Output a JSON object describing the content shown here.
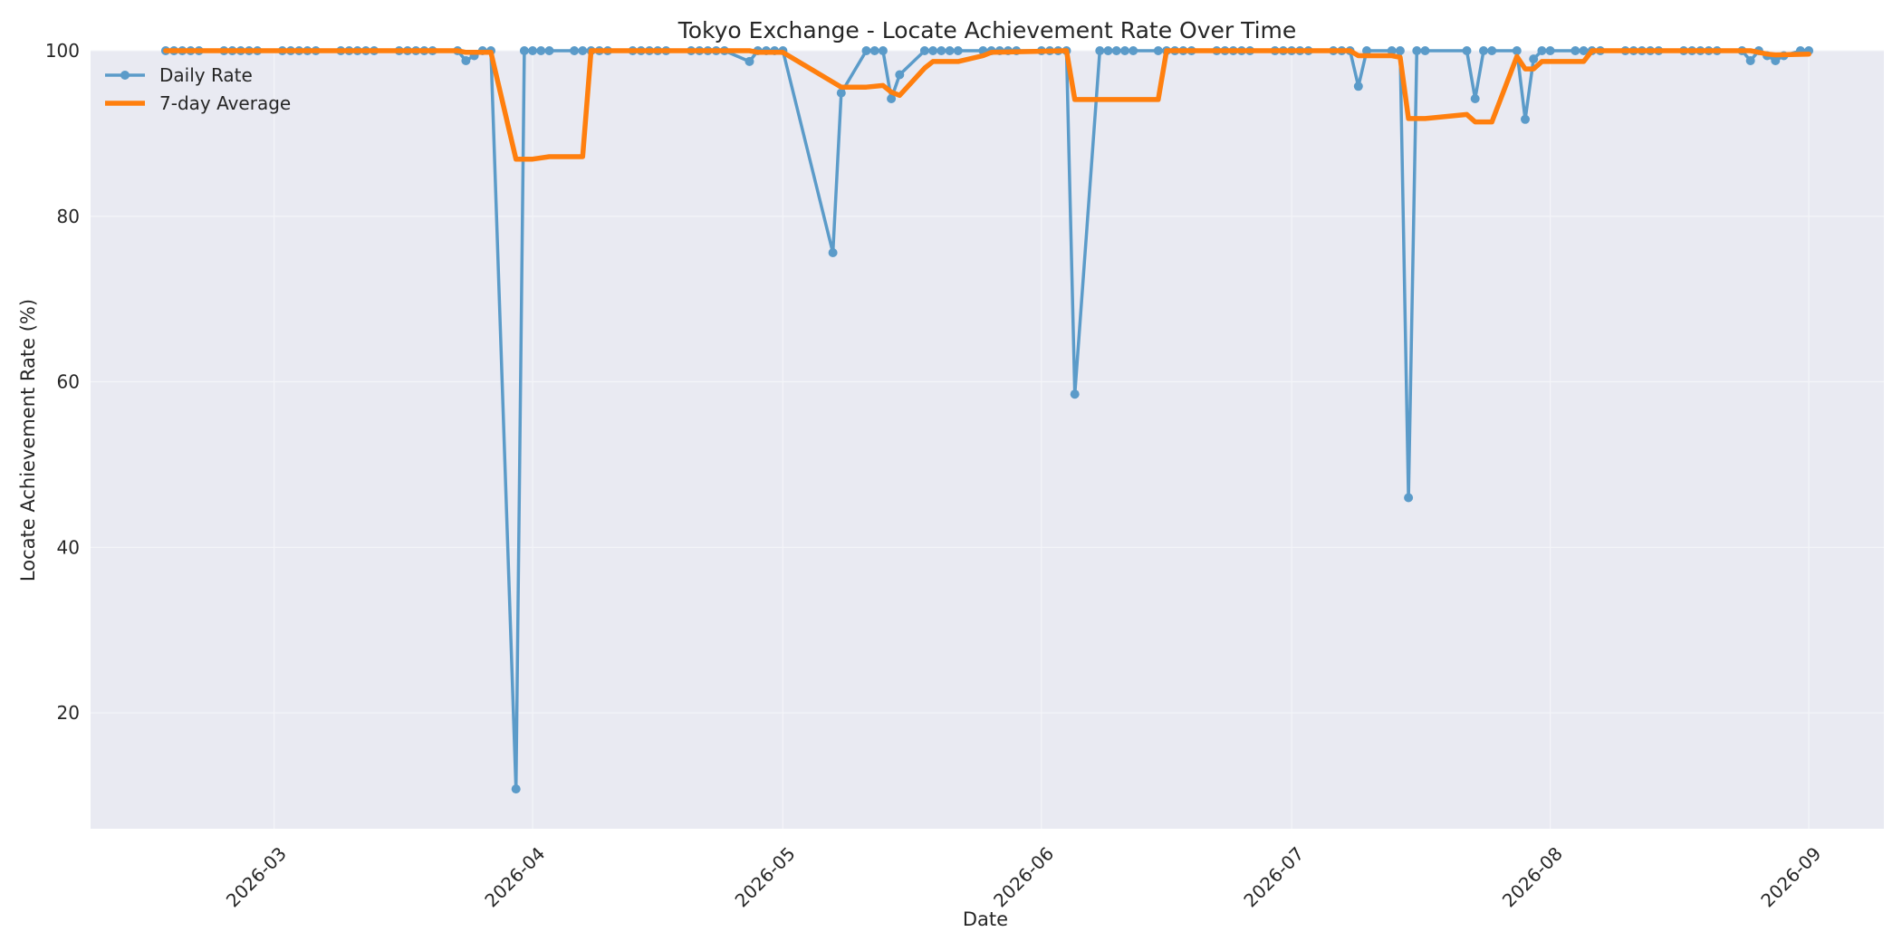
{
  "chart_data": {
    "type": "line",
    "title": "Tokyo Exchange - Locate Achievement Rate Over Time",
    "xlabel": "Date",
    "ylabel": "Locate Achievement Rate (%)",
    "xlim": [
      "2026-02-07",
      "2026-09-10"
    ],
    "ylim": [
      6,
      100
    ],
    "x_ticks": [
      "2026-03",
      "2026-04",
      "2026-05",
      "2026-06",
      "2026-07",
      "2026-08",
      "2026-09"
    ],
    "y_ticks": [
      20,
      40,
      60,
      80,
      100
    ],
    "grid": true,
    "legend_position": "upper left",
    "background_color": "#e9eaf2",
    "grid_color": "#f4f5f9",
    "series": [
      {
        "name": "Daily Rate",
        "color": "#5b9bc9",
        "marker": "circle",
        "points": [
          [
            "2026-02-16",
            100
          ],
          [
            "2026-02-17",
            100
          ],
          [
            "2026-02-18",
            100
          ],
          [
            "2026-02-19",
            100
          ],
          [
            "2026-02-20",
            100
          ],
          [
            "2026-02-23",
            100
          ],
          [
            "2026-02-24",
            100
          ],
          [
            "2026-02-25",
            100
          ],
          [
            "2026-02-26",
            100
          ],
          [
            "2026-02-27",
            100
          ],
          [
            "2026-03-02",
            100
          ],
          [
            "2026-03-03",
            100
          ],
          [
            "2026-03-04",
            100
          ],
          [
            "2026-03-05",
            100
          ],
          [
            "2026-03-06",
            100
          ],
          [
            "2026-03-09",
            100
          ],
          [
            "2026-03-10",
            100
          ],
          [
            "2026-03-11",
            100
          ],
          [
            "2026-03-12",
            100
          ],
          [
            "2026-03-13",
            100
          ],
          [
            "2026-03-16",
            100
          ],
          [
            "2026-03-17",
            100
          ],
          [
            "2026-03-18",
            100
          ],
          [
            "2026-03-19",
            100
          ],
          [
            "2026-03-20",
            100
          ],
          [
            "2026-03-23",
            100
          ],
          [
            "2026-03-24",
            98.8
          ],
          [
            "2026-03-25",
            99.4
          ],
          [
            "2026-03-26",
            100
          ],
          [
            "2026-03-27",
            100
          ],
          [
            "2026-03-30",
            10.8
          ],
          [
            "2026-03-31",
            100
          ],
          [
            "2026-04-01",
            100
          ],
          [
            "2026-04-02",
            100
          ],
          [
            "2026-04-03",
            100
          ],
          [
            "2026-04-06",
            100
          ],
          [
            "2026-04-07",
            100
          ],
          [
            "2026-04-08",
            100
          ],
          [
            "2026-04-09",
            100
          ],
          [
            "2026-04-10",
            100
          ],
          [
            "2026-04-13",
            100
          ],
          [
            "2026-04-14",
            100
          ],
          [
            "2026-04-15",
            100
          ],
          [
            "2026-04-16",
            100
          ],
          [
            "2026-04-17",
            100
          ],
          [
            "2026-04-20",
            100
          ],
          [
            "2026-04-21",
            100
          ],
          [
            "2026-04-22",
            100
          ],
          [
            "2026-04-23",
            100
          ],
          [
            "2026-04-24",
            100
          ],
          [
            "2026-04-27",
            98.7
          ],
          [
            "2026-04-28",
            100
          ],
          [
            "2026-04-29",
            100
          ],
          [
            "2026-04-30",
            100
          ],
          [
            "2026-05-01",
            100
          ],
          [
            "2026-05-07",
            75.6
          ],
          [
            "2026-05-08",
            94.9
          ],
          [
            "2026-05-11",
            100
          ],
          [
            "2026-05-12",
            100
          ],
          [
            "2026-05-13",
            100
          ],
          [
            "2026-05-14",
            94.2
          ],
          [
            "2026-05-15",
            97.1
          ],
          [
            "2026-05-18",
            100
          ],
          [
            "2026-05-19",
            100
          ],
          [
            "2026-05-20",
            100
          ],
          [
            "2026-05-21",
            100
          ],
          [
            "2026-05-22",
            100
          ],
          [
            "2026-05-25",
            100
          ],
          [
            "2026-05-26",
            100
          ],
          [
            "2026-05-27",
            100
          ],
          [
            "2026-05-28",
            100
          ],
          [
            "2026-05-29",
            100
          ],
          [
            "2026-06-01",
            100
          ],
          [
            "2026-06-02",
            100
          ],
          [
            "2026-06-03",
            100
          ],
          [
            "2026-06-04",
            100
          ],
          [
            "2026-06-05",
            58.5
          ],
          [
            "2026-06-08",
            100
          ],
          [
            "2026-06-09",
            100
          ],
          [
            "2026-06-10",
            100
          ],
          [
            "2026-06-11",
            100
          ],
          [
            "2026-06-12",
            100
          ],
          [
            "2026-06-15",
            100
          ],
          [
            "2026-06-16",
            100
          ],
          [
            "2026-06-17",
            100
          ],
          [
            "2026-06-18",
            100
          ],
          [
            "2026-06-19",
            100
          ],
          [
            "2026-06-22",
            100
          ],
          [
            "2026-06-23",
            100
          ],
          [
            "2026-06-24",
            100
          ],
          [
            "2026-06-25",
            100
          ],
          [
            "2026-06-26",
            100
          ],
          [
            "2026-06-29",
            100
          ],
          [
            "2026-06-30",
            100
          ],
          [
            "2026-07-01",
            100
          ],
          [
            "2026-07-02",
            100
          ],
          [
            "2026-07-03",
            100
          ],
          [
            "2026-07-06",
            100
          ],
          [
            "2026-07-07",
            100
          ],
          [
            "2026-07-08",
            100
          ],
          [
            "2026-07-09",
            95.7
          ],
          [
            "2026-07-10",
            100
          ],
          [
            "2026-07-13",
            100
          ],
          [
            "2026-07-14",
            100
          ],
          [
            "2026-07-15",
            46.0
          ],
          [
            "2026-07-16",
            100
          ],
          [
            "2026-07-17",
            100
          ],
          [
            "2026-07-22",
            100
          ],
          [
            "2026-07-23",
            94.2
          ],
          [
            "2026-07-24",
            100
          ],
          [
            "2026-07-25",
            100
          ],
          [
            "2026-07-28",
            100
          ],
          [
            "2026-07-29",
            91.7
          ],
          [
            "2026-07-30",
            99.0
          ],
          [
            "2026-07-31",
            100
          ],
          [
            "2026-08-01",
            100
          ],
          [
            "2026-08-04",
            100
          ],
          [
            "2026-08-05",
            100
          ],
          [
            "2026-08-06",
            100
          ],
          [
            "2026-08-07",
            100
          ],
          [
            "2026-08-10",
            100
          ],
          [
            "2026-08-11",
            100
          ],
          [
            "2026-08-12",
            100
          ],
          [
            "2026-08-13",
            100
          ],
          [
            "2026-08-14",
            100
          ],
          [
            "2026-08-17",
            100
          ],
          [
            "2026-08-18",
            100
          ],
          [
            "2026-08-19",
            100
          ],
          [
            "2026-08-20",
            100
          ],
          [
            "2026-08-21",
            100
          ],
          [
            "2026-08-24",
            100
          ],
          [
            "2026-08-25",
            98.8
          ],
          [
            "2026-08-26",
            100
          ],
          [
            "2026-08-27",
            99.4
          ],
          [
            "2026-08-28",
            98.8
          ],
          [
            "2026-08-29",
            99.4
          ],
          [
            "2026-08-31",
            100
          ],
          [
            "2026-09-01",
            100
          ]
        ]
      },
      {
        "name": "7-day Average",
        "color": "#ff7f0e",
        "marker": "none",
        "points": [
          [
            "2026-02-16",
            100
          ],
          [
            "2026-03-23",
            100
          ],
          [
            "2026-03-24",
            99.8
          ],
          [
            "2026-03-27",
            99.8
          ],
          [
            "2026-03-30",
            86.9
          ],
          [
            "2026-04-01",
            86.9
          ],
          [
            "2026-04-03",
            87.2
          ],
          [
            "2026-04-07",
            87.2
          ],
          [
            "2026-04-08",
            100
          ],
          [
            "2026-04-27",
            100
          ],
          [
            "2026-04-28",
            99.8
          ],
          [
            "2026-05-01",
            99.8
          ],
          [
            "2026-05-07",
            96.2
          ],
          [
            "2026-05-08",
            95.6
          ],
          [
            "2026-05-11",
            95.6
          ],
          [
            "2026-05-13",
            95.8
          ],
          [
            "2026-05-14",
            95.0
          ],
          [
            "2026-05-15",
            94.6
          ],
          [
            "2026-05-18",
            97.9
          ],
          [
            "2026-05-19",
            98.7
          ],
          [
            "2026-05-22",
            98.7
          ],
          [
            "2026-05-25",
            99.4
          ],
          [
            "2026-05-26",
            99.8
          ],
          [
            "2026-06-04",
            100
          ],
          [
            "2026-06-05",
            94.1
          ],
          [
            "2026-06-15",
            94.1
          ],
          [
            "2026-06-16",
            100
          ],
          [
            "2026-07-08",
            100
          ],
          [
            "2026-07-09",
            99.4
          ],
          [
            "2026-07-13",
            99.4
          ],
          [
            "2026-07-14",
            99.2
          ],
          [
            "2026-07-15",
            91.8
          ],
          [
            "2026-07-17",
            91.8
          ],
          [
            "2026-07-22",
            92.3
          ],
          [
            "2026-07-23",
            91.4
          ],
          [
            "2026-07-25",
            91.4
          ],
          [
            "2026-07-28",
            99.3
          ],
          [
            "2026-07-29",
            97.8
          ],
          [
            "2026-07-30",
            97.8
          ],
          [
            "2026-07-31",
            98.7
          ],
          [
            "2026-08-05",
            98.7
          ],
          [
            "2026-08-06",
            100
          ],
          [
            "2026-08-25",
            100
          ],
          [
            "2026-08-26",
            99.8
          ],
          [
            "2026-08-27",
            99.6
          ],
          [
            "2026-08-28",
            99.5
          ],
          [
            "2026-09-01",
            99.6
          ]
        ]
      }
    ]
  }
}
